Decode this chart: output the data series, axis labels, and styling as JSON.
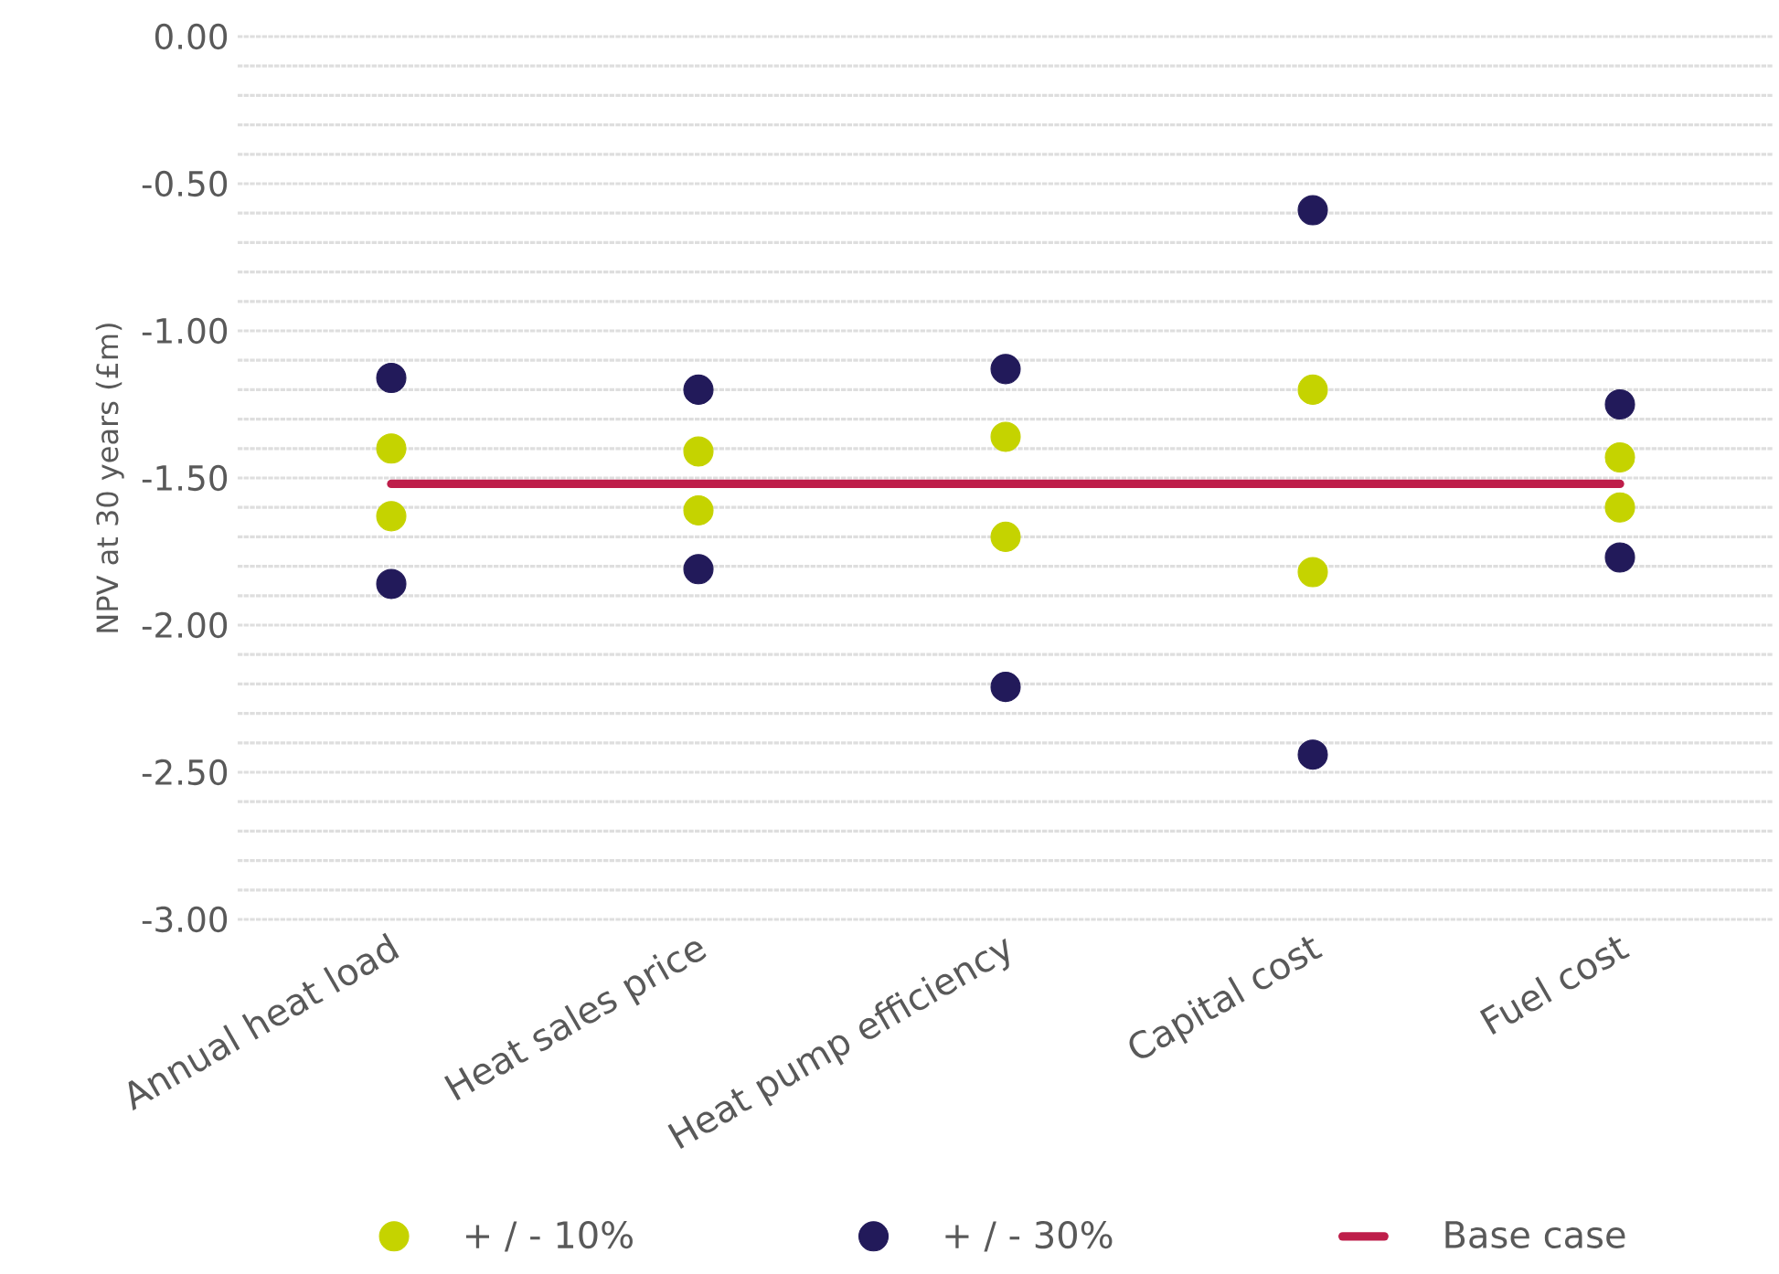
{
  "chart_data": {
    "type": "scatter",
    "ylabel": "NPV at 30 years (£m)",
    "categories": [
      "Annual heat load",
      "Heat sales price",
      "Heat pump efficiency",
      "Capital cost",
      "Fuel cost"
    ],
    "ylim": [
      -3,
      0
    ],
    "yticks": [
      {
        "value": 0,
        "label": "0.00"
      },
      {
        "value": -0.1,
        "label": null
      },
      {
        "value": -0.2,
        "label": null
      },
      {
        "value": -0.3,
        "label": null
      },
      {
        "value": -0.4,
        "label": null
      },
      {
        "value": -0.5,
        "label": "-0.50"
      },
      {
        "value": -0.6,
        "label": null
      },
      {
        "value": -0.7,
        "label": null
      },
      {
        "value": -0.8,
        "label": null
      },
      {
        "value": -0.9,
        "label": null
      },
      {
        "value": -1,
        "label": "-1.00"
      },
      {
        "value": -1.1,
        "label": null
      },
      {
        "value": -1.2,
        "label": null
      },
      {
        "value": -1.3,
        "label": null
      },
      {
        "value": -1.4,
        "label": null
      },
      {
        "value": -1.5,
        "label": "-1.50"
      },
      {
        "value": -1.6,
        "label": null
      },
      {
        "value": -1.7,
        "label": null
      },
      {
        "value": -1.8,
        "label": null
      },
      {
        "value": -1.9,
        "label": null
      },
      {
        "value": -2,
        "label": "-2.00"
      },
      {
        "value": -2.1,
        "label": null
      },
      {
        "value": -2.2,
        "label": null
      },
      {
        "value": -2.3,
        "label": null
      },
      {
        "value": -2.4,
        "label": null
      },
      {
        "value": -2.5,
        "label": "-2.50"
      },
      {
        "value": -2.6,
        "label": null
      },
      {
        "value": -2.7,
        "label": null
      },
      {
        "value": -2.8,
        "label": null
      },
      {
        "value": -2.9,
        "label": null
      },
      {
        "value": -3,
        "label": "-3.00"
      }
    ],
    "grid": "y",
    "legend": "bottom",
    "marker": "circle",
    "series": [
      {
        "name": "+ / - 10%",
        "type": "scatter",
        "color": "#c5d300",
        "x": [
          "Annual heat load",
          "Annual heat load",
          "Heat sales price",
          "Heat sales price",
          "Heat pump efficiency",
          "Heat pump efficiency",
          "Capital cost",
          "Capital cost",
          "Fuel cost",
          "Fuel cost"
        ],
        "values": [
          -1.4,
          -1.63,
          -1.41,
          -1.61,
          -1.36,
          -1.7,
          -1.2,
          -1.82,
          -1.43,
          -1.6
        ]
      },
      {
        "name": "+ / - 30%",
        "type": "scatter",
        "color": "#221a5a",
        "x": [
          "Annual heat load",
          "Annual heat load",
          "Heat sales price",
          "Heat sales price",
          "Heat pump efficiency",
          "Heat pump efficiency",
          "Capital cost",
          "Capital cost",
          "Fuel cost",
          "Fuel cost"
        ],
        "values": [
          -1.16,
          -1.86,
          -1.2,
          -1.81,
          -1.13,
          -2.21,
          -0.59,
          -2.44,
          -1.25,
          -1.77
        ]
      },
      {
        "name": "Base case",
        "type": "line",
        "marker": "none",
        "color": "#be1e4a",
        "values": [
          -1.52,
          -1.52,
          -1.52,
          -1.52,
          -1.52
        ]
      }
    ]
  }
}
